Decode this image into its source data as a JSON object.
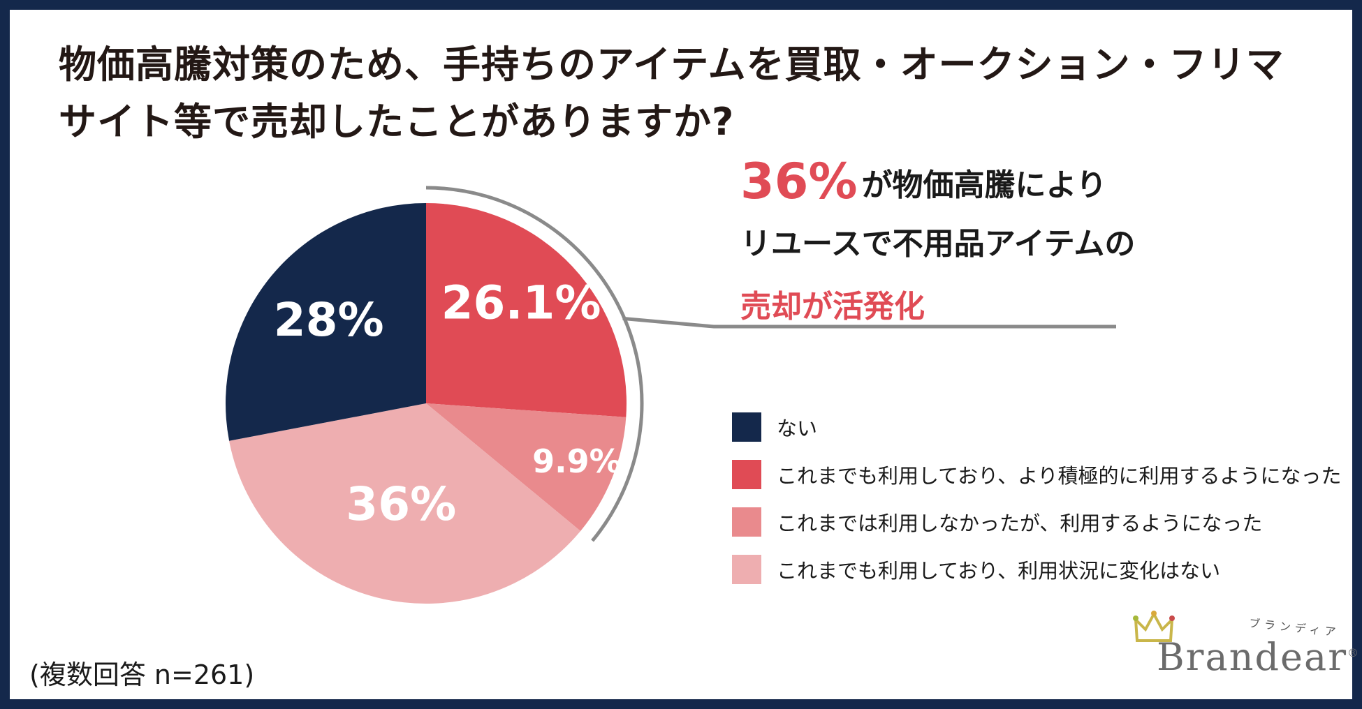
{
  "title": {
    "line1": "物価高騰対策のため、手持ちのアイテムを買取・オークション・フリマ",
    "line2": "サイト等で売却したことがありますか?"
  },
  "callout": {
    "pct": "36%",
    "line1_rest": "が物価高騰により",
    "line2": "リユースで不用品アイテムの",
    "line3": "売却が活発化"
  },
  "note": "(複数回答 n=261)",
  "logo": {
    "word": "Brandear",
    "kana": "ブランディア",
    "mark": "®"
  },
  "colors": {
    "frame": "#14284b",
    "accent": "#e04b55",
    "leader_line": "#8a8a8a"
  },
  "chart_data": {
    "type": "pie",
    "start": "12 o'clock, clockwise",
    "slices": [
      {
        "label": "これまでも利用しており、より積極的に利用するようになった",
        "value": 26.1,
        "display": "26.1%",
        "color": "#e04b55"
      },
      {
        "label": "これまでは利用しなかったが、利用するようになった",
        "value": 9.9,
        "display": "9.9%",
        "color": "#e98a8d"
      },
      {
        "label": "これまでも利用しており、利用状況に変化はない",
        "value": 36,
        "display": "36%",
        "color": "#eeaeb0"
      },
      {
        "label": "ない",
        "value": 28,
        "display": "28%",
        "color": "#14284b"
      }
    ],
    "legend": {
      "placement": "right",
      "items": [
        {
          "label": "ない",
          "color": "#14284b"
        },
        {
          "label": "これまでも利用しており、より積極的に利用するようになった",
          "color": "#e04b55"
        },
        {
          "label": "これまでは利用しなかったが、利用するようになった",
          "color": "#e98a8d"
        },
        {
          "label": "これまでも利用しており、利用状況に変化はない",
          "color": "#eeaeb0"
        }
      ]
    }
  }
}
